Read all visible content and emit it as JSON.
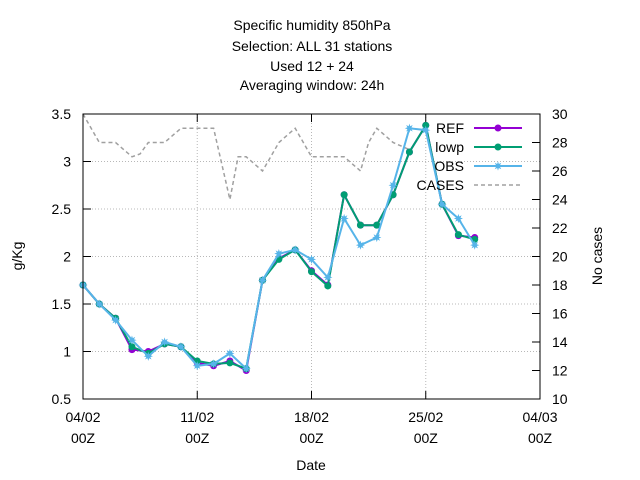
{
  "chart_data": {
    "type": "line",
    "title_lines": [
      "Specific humidity 850hPa",
      "Selection: ALL      31 stations",
      "Used  12  + 24",
      "Averaging window: 24h"
    ],
    "xlabel": "Date",
    "ylabel": "g/Kg",
    "y2label": "No cases",
    "x_ticks": [
      {
        "day": 0,
        "line1": "04/02",
        "line2": "00Z"
      },
      {
        "day": 7,
        "line1": "11/02",
        "line2": "00Z"
      },
      {
        "day": 14,
        "line1": "18/02",
        "line2": "00Z"
      },
      {
        "day": 21,
        "line1": "25/02",
        "line2": "00Z"
      },
      {
        "day": 28,
        "line1": "04/03",
        "line2": "00Z"
      }
    ],
    "xlim": [
      0,
      28
    ],
    "ylim": [
      0.5,
      3.5
    ],
    "y_ticks": [
      "0.5",
      "1",
      "1.5",
      "2",
      "2.5",
      "3",
      "3.5"
    ],
    "y2lim": [
      10,
      30
    ],
    "y2_ticks": [
      "10",
      "12",
      "14",
      "16",
      "18",
      "20",
      "22",
      "24",
      "26",
      "28",
      "30"
    ],
    "grid": true,
    "legend_position": "top-right",
    "x": [
      0,
      1,
      2,
      3,
      4,
      5,
      6,
      7,
      8,
      9,
      10,
      11,
      12,
      13,
      14,
      15,
      16,
      17,
      18,
      19,
      20,
      21,
      22,
      23,
      24,
      25
    ],
    "series": [
      {
        "name": "REF",
        "color": "#9400d3",
        "marker": "circle",
        "axis": "y",
        "values": [
          1.7,
          1.5,
          1.35,
          1.02,
          1.0,
          1.08,
          1.05,
          0.88,
          0.85,
          0.9,
          0.8,
          1.75,
          1.98,
          2.07,
          1.85,
          1.7,
          2.65,
          2.33,
          2.33,
          2.65,
          3.1,
          3.38,
          2.55,
          2.22,
          2.2,
          null
        ]
      },
      {
        "name": "lowp",
        "color": "#009e73",
        "marker": "circle",
        "axis": "y",
        "values": [
          1.7,
          1.5,
          1.35,
          1.05,
          0.98,
          1.08,
          1.05,
          0.9,
          0.87,
          0.88,
          0.82,
          1.75,
          1.97,
          2.07,
          1.84,
          1.69,
          2.65,
          2.33,
          2.33,
          2.65,
          3.1,
          3.38,
          2.55,
          2.23,
          2.18,
          null
        ]
      },
      {
        "name": "OBS",
        "color": "#56b4e9",
        "marker": "star",
        "axis": "y",
        "values": [
          1.7,
          1.5,
          1.33,
          1.12,
          0.95,
          1.1,
          1.05,
          0.85,
          0.87,
          0.98,
          0.82,
          1.75,
          2.03,
          2.07,
          1.97,
          1.78,
          2.4,
          2.12,
          2.2,
          2.75,
          3.35,
          3.33,
          2.55,
          2.4,
          2.12,
          null
        ]
      },
      {
        "name": "CASES",
        "color": "#a0a0a0",
        "marker": "none",
        "dashed": true,
        "axis": "y2",
        "x": [
          0,
          1,
          2,
          3,
          3.5,
          4,
          4.5,
          5,
          6,
          7,
          7.5,
          8,
          9,
          9.5,
          10,
          11,
          11.5,
          12,
          12.5,
          13,
          14,
          14.5,
          15,
          16,
          17,
          17.5,
          18,
          19,
          20
        ],
        "values": [
          30,
          28,
          28,
          27,
          27.2,
          28,
          28,
          28,
          29,
          29,
          29,
          29,
          24,
          27,
          27,
          26,
          27,
          28,
          28.5,
          29,
          27,
          27,
          27,
          27,
          26,
          28,
          29,
          28,
          27.5
        ]
      }
    ]
  }
}
